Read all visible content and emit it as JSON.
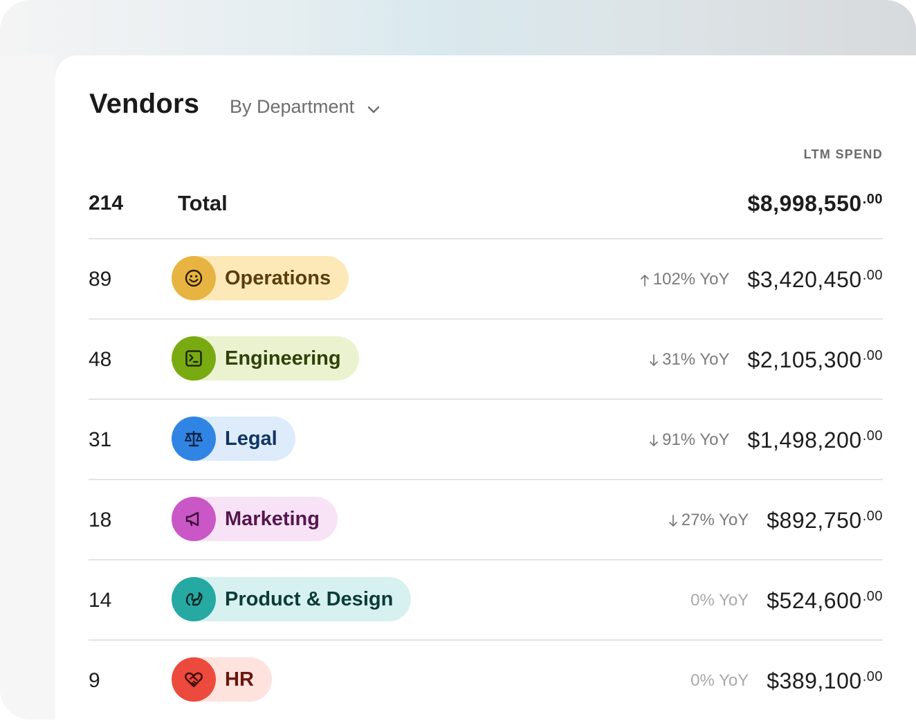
{
  "header": {
    "title": "Vendors",
    "group_by": "By Department",
    "column_label": "LTM SPEND"
  },
  "total": {
    "count": "214",
    "label": "Total",
    "amount": "$8,998,550",
    "cents": ".00"
  },
  "departments": [
    {
      "count": "89",
      "label": "Operations",
      "yoy": "102% YoY",
      "trend": "up",
      "amount": "$3,420,450",
      "cents": ".00",
      "icon": "smiley-icon",
      "icon_bg": "#e8b441",
      "pill_bg": "#fde9b8",
      "text_color": "#5a3d0a"
    },
    {
      "count": "48",
      "label": "Engineering",
      "yoy": "31% YoY",
      "trend": "down",
      "amount": "$2,105,300",
      "cents": ".00",
      "icon": "terminal-icon",
      "icon_bg": "#7aaa12",
      "pill_bg": "#eaf2cf",
      "text_color": "#2f4208"
    },
    {
      "count": "31",
      "label": "Legal",
      "yoy": "91% YoY",
      "trend": "down",
      "amount": "$1,498,200",
      "cents": ".00",
      "icon": "scale-icon",
      "icon_bg": "#3085e4",
      "pill_bg": "#ddebfb",
      "text_color": "#0f3563"
    },
    {
      "count": "18",
      "label": "Marketing",
      "yoy": "27% YoY",
      "trend": "down",
      "amount": "$892,750",
      "cents": ".00",
      "icon": "megaphone-icon",
      "icon_bg": "#c957c5",
      "pill_bg": "#f8e3f6",
      "text_color": "#57164f"
    },
    {
      "count": "14",
      "label": "Product & Design",
      "yoy": "0% YoY",
      "trend": "flat",
      "amount": "$524,600",
      "cents": ".00",
      "icon": "squirrel-icon",
      "icon_bg": "#26a9a2",
      "pill_bg": "#d6f1ef",
      "text_color": "#0b3b38"
    },
    {
      "count": "9",
      "label": "HR",
      "yoy": "0% YoY",
      "trend": "flat",
      "amount": "$389,100",
      "cents": ".00",
      "icon": "heart-handshake-icon",
      "icon_bg": "#ec4a3c",
      "pill_bg": "#fde2dd",
      "text_color": "#6a160e"
    }
  ]
}
